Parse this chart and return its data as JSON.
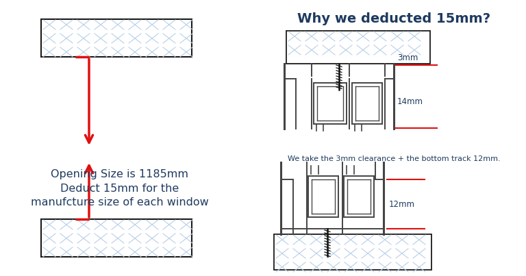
{
  "title_right": "Why we deducted 15mm?",
  "text_color": "#1e3a5f",
  "text_line1": "Opening Size is 1185mm",
  "text_line2": "Deduct 15mm for the",
  "text_line3": "manufcture size of each window",
  "caption": "We take the 3mm clearance + the bottom track 12mm.",
  "label_3mm": "3mm",
  "label_14mm": "14mm",
  "label_12mm": "12mm",
  "red_color": "#e01010",
  "hat_color": "#b8d0e8",
  "frame_color": "#1a1a1a",
  "track_color": "#444444",
  "bg_color": "#ffffff"
}
